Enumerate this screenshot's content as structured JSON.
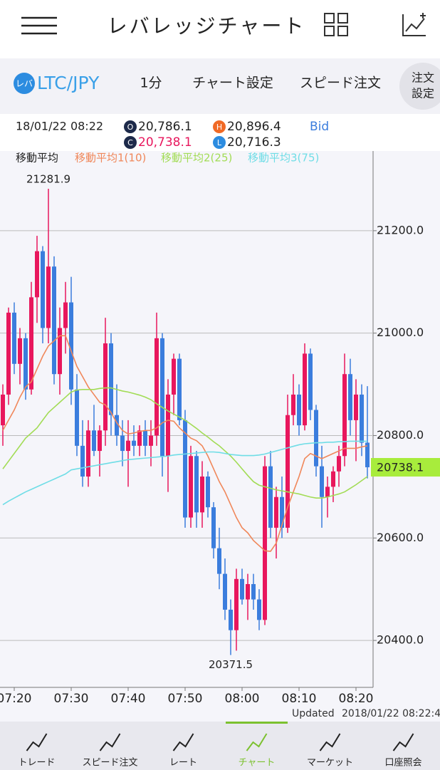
{
  "header": {
    "title": "レバレッジチャート"
  },
  "toolbar": {
    "logo": "レバ",
    "pair": "LTC/JPY",
    "interval": "1分",
    "settings": "チャート設定",
    "speed_order": "スピード注文",
    "order_settings": [
      "注文",
      "設定"
    ]
  },
  "info": {
    "datetime": "18/01/22 08:22",
    "open_icon": "O",
    "open": "20,786.1",
    "high_icon": "H",
    "high": "20,896.4",
    "close_icon": "C",
    "close": "20,738.1",
    "low_icon": "L",
    "low": "20,716.3",
    "price_type": "Bid"
  },
  "chart_data": {
    "type": "candlestick",
    "legend_title": "移動平均",
    "categories": [
      "07:18",
      "07:19",
      "07:20",
      "07:21",
      "07:22",
      "07:23",
      "07:24",
      "07:25",
      "07:26",
      "07:27",
      "07:28",
      "07:29",
      "07:30",
      "07:31",
      "07:32",
      "07:33",
      "07:34",
      "07:35",
      "07:36",
      "07:37",
      "07:38",
      "07:39",
      "07:40",
      "07:41",
      "07:42",
      "07:43",
      "07:44",
      "07:45",
      "07:46",
      "07:47",
      "07:48",
      "07:49",
      "07:50",
      "07:51",
      "07:52",
      "07:53",
      "07:54",
      "07:55",
      "07:56",
      "07:57",
      "07:58",
      "07:59",
      "08:00",
      "08:01",
      "08:02",
      "08:03",
      "08:04",
      "08:05",
      "08:06",
      "08:07",
      "08:08",
      "08:09",
      "08:10",
      "08:11",
      "08:12",
      "08:13",
      "08:14",
      "08:15",
      "08:16",
      "08:17",
      "08:18",
      "08:19",
      "08:20",
      "08:21",
      "08:22"
    ],
    "open": [
      20820,
      20880,
      21040,
      20940,
      20990,
      20890,
      21070,
      21160,
      21010,
      21130,
      20920,
      21010,
      21060,
      20890,
      20780,
      20720,
      20810,
      20770,
      20810,
      20980,
      20840,
      20800,
      20770,
      20790,
      20780,
      20810,
      20780,
      20800,
      20990,
      20760,
      20880,
      20950,
      20830,
      20640,
      20760,
      20650,
      20720,
      20660,
      20580,
      20530,
      20460,
      20420,
      20520,
      20480,
      20510,
      20480,
      20440,
      20740,
      20620,
      20680,
      20620,
      20840,
      20880,
      20820,
      20960,
      20850,
      20740,
      20680,
      20700,
      20730,
      20760,
      20920,
      20830,
      20880,
      20786.1
    ],
    "high": [
      20900,
      21050,
      21060,
      21010,
      21000,
      21100,
      21190,
      21170,
      21281.9,
      21150,
      21050,
      21100,
      21110,
      20920,
      20830,
      20830,
      20860,
      20820,
      21030,
      21000,
      20900,
      20830,
      20830,
      20820,
      20820,
      20830,
      20830,
      21040,
      21000,
      20910,
      20960,
      20960,
      20850,
      20780,
      20770,
      20750,
      20730,
      20670,
      20620,
      20560,
      20480,
      20540,
      20540,
      20530,
      20530,
      20500,
      20760,
      20770,
      20700,
      20720,
      20880,
      20920,
      20900,
      20980,
      20970,
      20860,
      20780,
      20720,
      20740,
      20780,
      20960,
      20950,
      20910,
      20900,
      20896.4
    ],
    "low": [
      20780,
      20860,
      20920,
      20900,
      20870,
      20880,
      21020,
      20980,
      20980,
      20900,
      20880,
      20960,
      20860,
      20760,
      20700,
      20700,
      20760,
      20720,
      20780,
      20800,
      20780,
      20740,
      20700,
      20760,
      20760,
      20760,
      20740,
      20780,
      20720,
      20690,
      20840,
      20820,
      20620,
      20620,
      20620,
      20620,
      20640,
      20560,
      20500,
      20440,
      20371.5,
      20380,
      20470,
      20440,
      20460,
      20420,
      20430,
      20600,
      20560,
      20600,
      20610,
      20820,
      20800,
      20810,
      20830,
      20720,
      20620,
      20640,
      20670,
      20700,
      20740,
      20800,
      20750,
      20760,
      20716.3
    ],
    "close": [
      20880,
      21040,
      20940,
      20990,
      20890,
      21070,
      21160,
      21010,
      21130,
      20920,
      21010,
      21060,
      20890,
      20780,
      20720,
      20810,
      20770,
      20810,
      20980,
      20840,
      20800,
      20770,
      20790,
      20780,
      20810,
      20780,
      20800,
      20990,
      20760,
      20880,
      20950,
      20830,
      20640,
      20760,
      20650,
      20720,
      20660,
      20580,
      20530,
      20460,
      20420,
      20520,
      20480,
      20510,
      20480,
      20440,
      20740,
      20620,
      20680,
      20620,
      20840,
      20880,
      20820,
      20960,
      20850,
      20740,
      20680,
      20700,
      20730,
      20760,
      20920,
      20830,
      20880,
      20786.1,
      20738.1
    ],
    "up_color": "#e8175d",
    "down_color": "#3b7ddd",
    "series": [
      {
        "name": "移動平均1(10)",
        "color": "#f0875a",
        "values": [
          20810,
          20830,
          20850,
          20875,
          20895,
          20905,
          20930,
          20955,
          20975,
          20985,
          20995,
          20995,
          20965,
          20935,
          20915,
          20895,
          20880,
          20865,
          20860,
          20845,
          20825,
          20810,
          20803,
          20805,
          20808,
          20810,
          20810,
          20815,
          20825,
          20830,
          20828,
          20815,
          20805,
          20795,
          20790,
          20780,
          20760,
          20735,
          20710,
          20690,
          20665,
          20640,
          20620,
          20610,
          20595,
          20585,
          20575,
          20574,
          20590,
          20625,
          20660,
          20690,
          20720,
          20755,
          20765,
          20760,
          20755,
          20760,
          20765,
          20770,
          20775,
          20775,
          20775,
          20778,
          20780
        ]
      },
      {
        "name": "移動平均2(25)",
        "color": "#a2dc55",
        "values": [
          20735,
          20750,
          20765,
          20780,
          20795,
          20805,
          20815,
          20830,
          20845,
          20855,
          20865,
          20875,
          20885,
          20889,
          20890,
          20890,
          20890,
          20892,
          20893,
          20893,
          20890,
          20887,
          20885,
          20882,
          20879,
          20875,
          20870,
          20862,
          20855,
          20848,
          20842,
          20836,
          20830,
          20822,
          20814,
          20805,
          20797,
          20788,
          20780,
          20770,
          20760,
          20748,
          20735,
          20722,
          20710,
          20703,
          20700,
          20697,
          20694,
          20692,
          20690,
          20688,
          20686,
          20683,
          20680,
          20678,
          20678,
          20680,
          20683,
          20686,
          20690,
          20697,
          20704,
          20712,
          20720
        ]
      },
      {
        "name": "移動平均3(75)",
        "color": "#6fdde6",
        "values": [
          20665,
          20672,
          20678,
          20684,
          20690,
          20695,
          20700,
          20705,
          20710,
          20715,
          20720,
          20725,
          20733,
          20735,
          20737,
          20739,
          20741,
          20743,
          20745,
          20747,
          20749,
          20751,
          20753,
          20754,
          20755,
          20756,
          20757,
          20758,
          20759,
          20760,
          20762,
          20763,
          20764,
          20765,
          20766,
          20767,
          20768,
          20768,
          20767,
          20765,
          20763,
          20762,
          20761,
          20761,
          20761,
          20762,
          20764,
          20767,
          20770,
          20773,
          20776,
          20779,
          20782,
          20784,
          20785,
          20786,
          20786,
          20787,
          20787,
          20788,
          20788,
          20789,
          20789,
          20789,
          20789
        ]
      }
    ],
    "ylim": [
      20310,
      21330
    ],
    "yticks": [
      {
        "value": 20400,
        "label": "20400.0"
      },
      {
        "value": 20600,
        "label": "20600.0"
      },
      {
        "value": 20800,
        "label": "20800.0"
      },
      {
        "value": 21000,
        "label": "21000.0"
      },
      {
        "value": 21200,
        "label": "21200.0"
      }
    ],
    "grid": true,
    "current_color": "#a8ec3c"
  },
  "updated": {
    "label": "Updated",
    "time": "2018/01/22 08:22:4"
  },
  "tabs": [
    "トレード",
    "スピード注文",
    "レート",
    "チャート",
    "マーケット",
    "口座照会"
  ],
  "active_tab": 3
}
